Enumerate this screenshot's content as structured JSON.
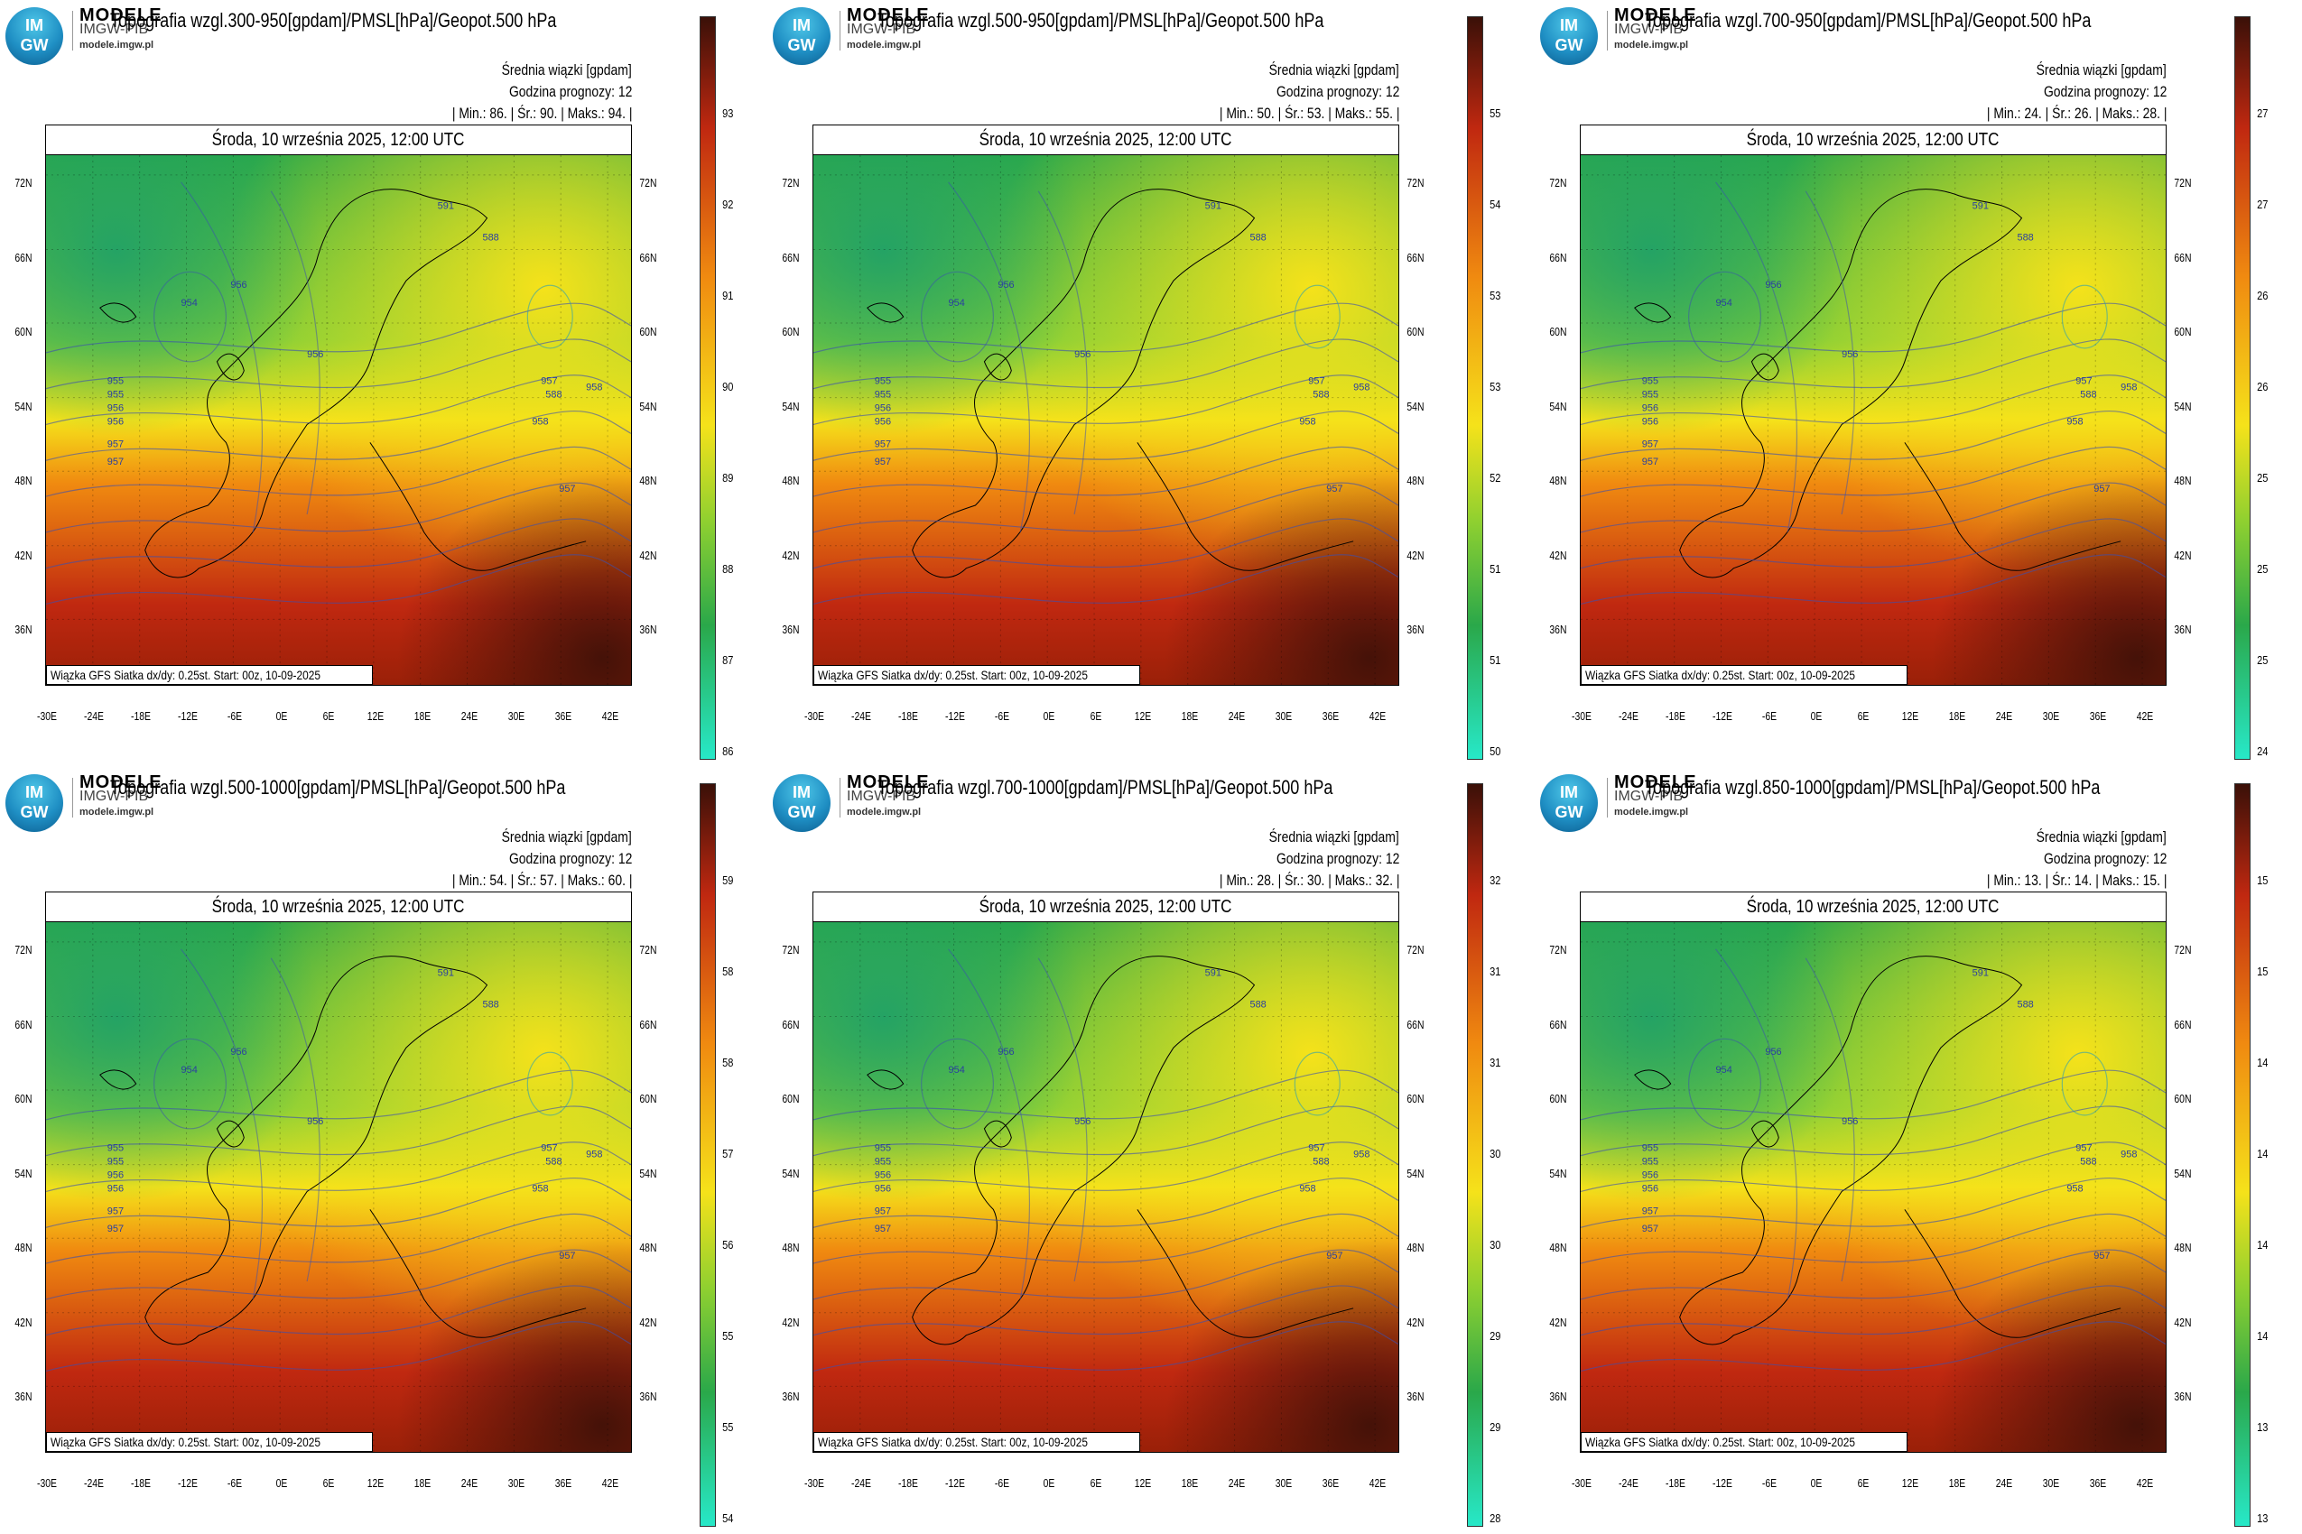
{
  "branding": {
    "logo_top": "IM",
    "logo_bottom": "GW",
    "name": "MODELE",
    "sub": "IMGW-PIB",
    "url": "modele.imgw.pl"
  },
  "common": {
    "ensemble_mean": "Średnia wiązki [gpdam]",
    "forecast_hour": "Godzina prognozy: 12",
    "date_line": "Środa, 10 września 2025, 12:00 UTC",
    "footer": "Wiązka GFS Siatka dx/dy: 0.25st. Start: 00z, 10-09-2025",
    "lat_labels": [
      "72N",
      "66N",
      "60N",
      "54N",
      "48N",
      "42N",
      "36N"
    ],
    "lon_labels": [
      "-30E",
      "-24E",
      "-18E",
      "-12E",
      "-6E",
      "0E",
      "6E",
      "12E",
      "18E",
      "24E",
      "30E",
      "36E",
      "42E"
    ]
  },
  "panels": [
    {
      "title": "Topografia wzgl.300-950[gpdam]/PMSL[hPa]/Geopot.500 hPa",
      "stats": "| Min.: 86. | Śr.: 90. | Maks.: 94. |",
      "colorbar": [
        "93",
        "92",
        "91",
        "90",
        "89",
        "88",
        "87",
        "86"
      ]
    },
    {
      "title": "Topografia wzgl.500-950[gpdam]/PMSL[hPa]/Geopot.500 hPa",
      "stats": "| Min.: 50. | Śr.: 53. | Maks.: 55. |",
      "colorbar": [
        "55",
        "54",
        "53",
        "53",
        "52",
        "51",
        "51",
        "50"
      ]
    },
    {
      "title": "Topografia wzgl.700-950[gpdam]/PMSL[hPa]/Geopot.500 hPa",
      "stats": "| Min.: 24. | Śr.: 26. | Maks.: 28. |",
      "colorbar": [
        "27",
        "27",
        "26",
        "26",
        "25",
        "25",
        "25",
        "24"
      ]
    },
    {
      "title": "Topografia wzgl.500-1000[gpdam]/PMSL[hPa]/Geopot.500 hPa",
      "stats": "| Min.: 54. | Śr.: 57. | Maks.: 60. |",
      "colorbar": [
        "59",
        "58",
        "58",
        "57",
        "56",
        "55",
        "55",
        "54"
      ]
    },
    {
      "title": "Topografia wzgl.700-1000[gpdam]/PMSL[hPa]/Geopot.500 hPa",
      "stats": "| Min.: 28. | Śr.: 30. | Maks.: 32. |",
      "colorbar": [
        "32",
        "31",
        "31",
        "30",
        "30",
        "29",
        "29",
        "28"
      ]
    },
    {
      "title": "Topografia wzgl.850-1000[gpdam]/PMSL[hPa]/Geopot.500 hPa",
      "stats": "| Min.: 13. | Śr.: 14. | Maks.: 15. |",
      "colorbar": [
        "15",
        "15",
        "14",
        "14",
        "14",
        "14",
        "13",
        "13"
      ]
    }
  ],
  "colors": {
    "low": "#27e8c8",
    "mid_green": "#2aa84a",
    "yellow": "#f5e21a",
    "orange": "#f08a10",
    "red": "#c02810",
    "dark": "#3a1008"
  },
  "map": {
    "contour_labels": [
      "955",
      "955",
      "956",
      "956",
      "957",
      "957",
      "956",
      "954",
      "956",
      "957",
      "958",
      "958",
      "957",
      "588",
      "591",
      "588"
    ]
  }
}
